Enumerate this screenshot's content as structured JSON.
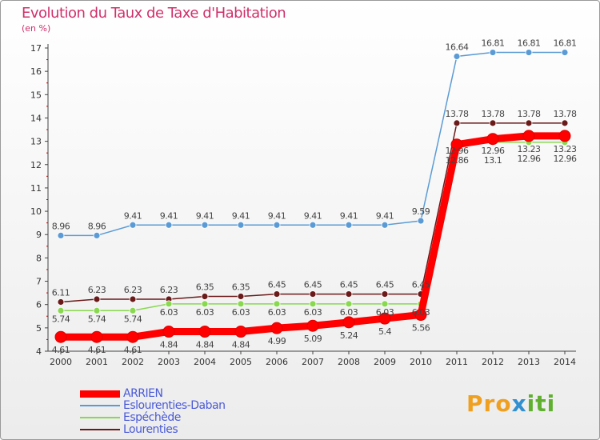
{
  "chart_data": {
    "type": "line",
    "title": "Evolution du Taux de Taxe d'Habitation",
    "subtitle": "(en %)",
    "x": [
      "2000",
      "2001",
      "2002",
      "2003",
      "2004",
      "2005",
      "2006",
      "2007",
      "2008",
      "2009",
      "2010",
      "2011",
      "2012",
      "2013",
      "2014"
    ],
    "ylim": [
      4,
      17
    ],
    "yticks": [
      "4",
      "5",
      "6",
      "7",
      "8",
      "9",
      "10",
      "11",
      "12",
      "13",
      "14",
      "15",
      "16",
      "17"
    ],
    "series": [
      {
        "name": "ARRIEN",
        "color": "#ff0000",
        "values": [
          4.61,
          4.61,
          4.61,
          4.84,
          4.84,
          4.84,
          4.99,
          5.09,
          5.24,
          5.4,
          5.56,
          12.86,
          13.1,
          13.23,
          13.23
        ]
      },
      {
        "name": "Eslourenties-Daban",
        "color": "#5b9bd5",
        "values": [
          8.96,
          8.96,
          9.41,
          9.41,
          9.41,
          9.41,
          9.41,
          9.41,
          9.41,
          9.41,
          9.59,
          16.64,
          16.81,
          16.81,
          16.81
        ]
      },
      {
        "name": "Espéchède",
        "color": "#88d850",
        "values": [
          5.74,
          5.74,
          5.74,
          6.03,
          6.03,
          6.03,
          6.03,
          6.03,
          6.03,
          6.03,
          6.03,
          12.96,
          12.96,
          12.96,
          12.96
        ]
      },
      {
        "name": "Lourenties",
        "color": "#6b1a1a",
        "values": [
          6.11,
          6.23,
          6.23,
          6.23,
          6.35,
          6.35,
          6.45,
          6.45,
          6.45,
          6.45,
          6.45,
          13.78,
          13.78,
          13.78,
          13.78
        ]
      }
    ],
    "legend_position": "bottom-left"
  },
  "logo": "Proxiti"
}
